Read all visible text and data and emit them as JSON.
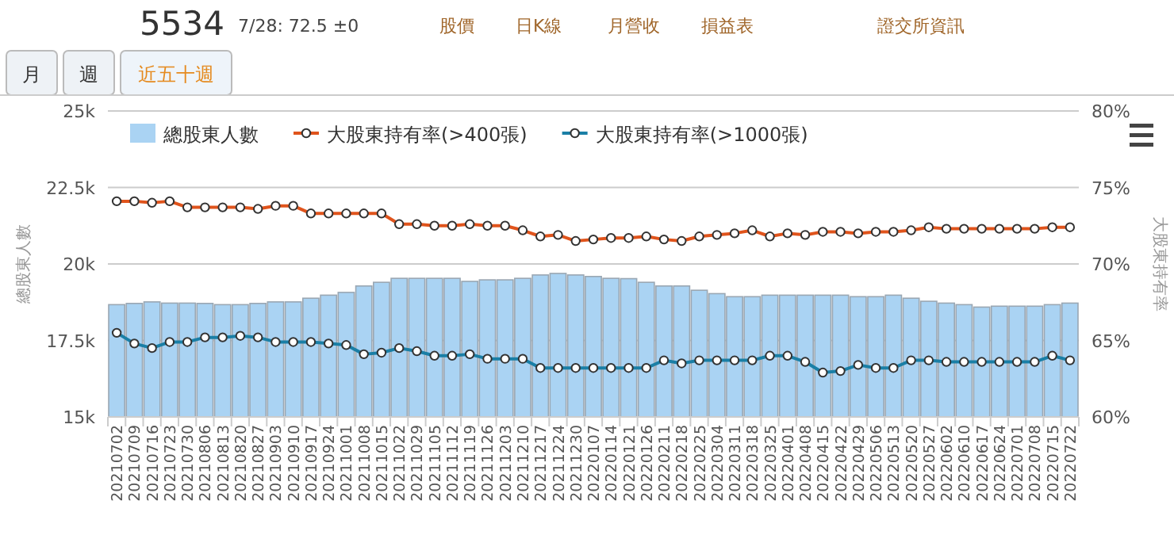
{
  "chart_data": {
    "type": "bar",
    "title": "5534",
    "subtitle": "7/28: 72.5 ±0",
    "annotations": [
      "股價",
      "日K線",
      "月營收",
      "損益表",
      "證交所資訊",
      "月",
      "週",
      "近五十週"
    ],
    "ylabel": "總股東人數",
    "y2label": "大股東持有率",
    "categories": [
      "20210702",
      "20210709",
      "20210716",
      "20210723",
      "20210730",
      "20210806",
      "20210813",
      "20210820",
      "20210827",
      "20210903",
      "20210910",
      "20210917",
      "20210924",
      "20211001",
      "20211008",
      "20211015",
      "20211022",
      "20211029",
      "20211105",
      "20211112",
      "20211119",
      "20211126",
      "20211203",
      "20211210",
      "20211217",
      "20211224",
      "20211230",
      "20220107",
      "20220114",
      "20220121",
      "20220126",
      "20220211",
      "20220218",
      "20220225",
      "20220304",
      "20220311",
      "20220318",
      "20220325",
      "20220401",
      "20220408",
      "20220415",
      "20220422",
      "20220429",
      "20220506",
      "20220513",
      "20220520",
      "20220527",
      "20220602",
      "20220610",
      "20220617",
      "20220624",
      "20220701",
      "20220708",
      "20220715",
      "20220722"
    ],
    "ylim": [
      15000,
      25000
    ],
    "yticks": [
      {
        "value": 15000,
        "label": "15k"
      },
      {
        "value": 17500,
        "label": "17.5k"
      },
      {
        "value": 20000,
        "label": "20k"
      },
      {
        "value": 22500,
        "label": "22.5k"
      },
      {
        "value": 25000,
        "label": "25k"
      }
    ],
    "y2lim": [
      60,
      80
    ],
    "y2ticks": [
      {
        "value": 60,
        "label": "60%"
      },
      {
        "value": 65,
        "label": "65%"
      },
      {
        "value": 70,
        "label": "70%"
      },
      {
        "value": 75,
        "label": "75%"
      },
      {
        "value": 80,
        "label": "80%"
      }
    ],
    "grid": "y",
    "legend": "top left",
    "marker": "circle",
    "series": [
      {
        "name": "總股東人數",
        "color": "#aad3f3",
        "values": [
          18670,
          18710,
          18760,
          18720,
          18720,
          18710,
          18670,
          18670,
          18710,
          18760,
          18760,
          18880,
          18980,
          19070,
          19280,
          19400,
          19530,
          19530,
          19530,
          19530,
          19430,
          19480,
          19480,
          19530,
          19640,
          19690,
          19640,
          19590,
          19530,
          19520,
          19400,
          19280,
          19280,
          19140,
          19030,
          18930,
          18930,
          18980,
          18980,
          18980,
          18980,
          18980,
          18930,
          18930,
          18980,
          18880,
          18780,
          18720,
          18670,
          18590,
          18620,
          18620,
          18620,
          18670,
          18720
        ]
      },
      {
        "name": "大股東持有率(>400張)",
        "type": "line",
        "axis": "y2",
        "color": "#e0541c",
        "values": [
          74.1,
          74.1,
          74.0,
          74.1,
          73.7,
          73.7,
          73.7,
          73.7,
          73.6,
          73.8,
          73.8,
          73.3,
          73.3,
          73.3,
          73.3,
          73.3,
          72.6,
          72.6,
          72.5,
          72.5,
          72.6,
          72.5,
          72.5,
          72.2,
          71.8,
          71.9,
          71.5,
          71.6,
          71.7,
          71.7,
          71.8,
          71.6,
          71.5,
          71.8,
          71.9,
          72.0,
          72.2,
          71.8,
          72.0,
          71.9,
          72.1,
          72.1,
          72.0,
          72.1,
          72.1,
          72.2,
          72.4,
          72.3,
          72.3,
          72.3,
          72.3,
          72.3,
          72.3,
          72.4,
          72.4
        ]
      },
      {
        "name": "大股東持有率(>1000張)",
        "type": "line",
        "axis": "y2",
        "color": "#1a7fa6",
        "values": [
          65.5,
          64.8,
          64.5,
          64.9,
          64.9,
          65.2,
          65.2,
          65.3,
          65.2,
          64.9,
          64.9,
          64.9,
          64.8,
          64.7,
          64.1,
          64.2,
          64.5,
          64.3,
          64.0,
          64.0,
          64.1,
          63.8,
          63.8,
          63.8,
          63.2,
          63.2,
          63.2,
          63.2,
          63.2,
          63.2,
          63.2,
          63.7,
          63.5,
          63.7,
          63.7,
          63.7,
          63.7,
          64.0,
          64.0,
          63.6,
          62.9,
          63.0,
          63.4,
          63.2,
          63.2,
          63.7,
          63.7,
          63.6,
          63.6,
          63.6,
          63.6,
          63.6,
          63.6,
          64.0,
          63.7
        ]
      }
    ]
  }
}
